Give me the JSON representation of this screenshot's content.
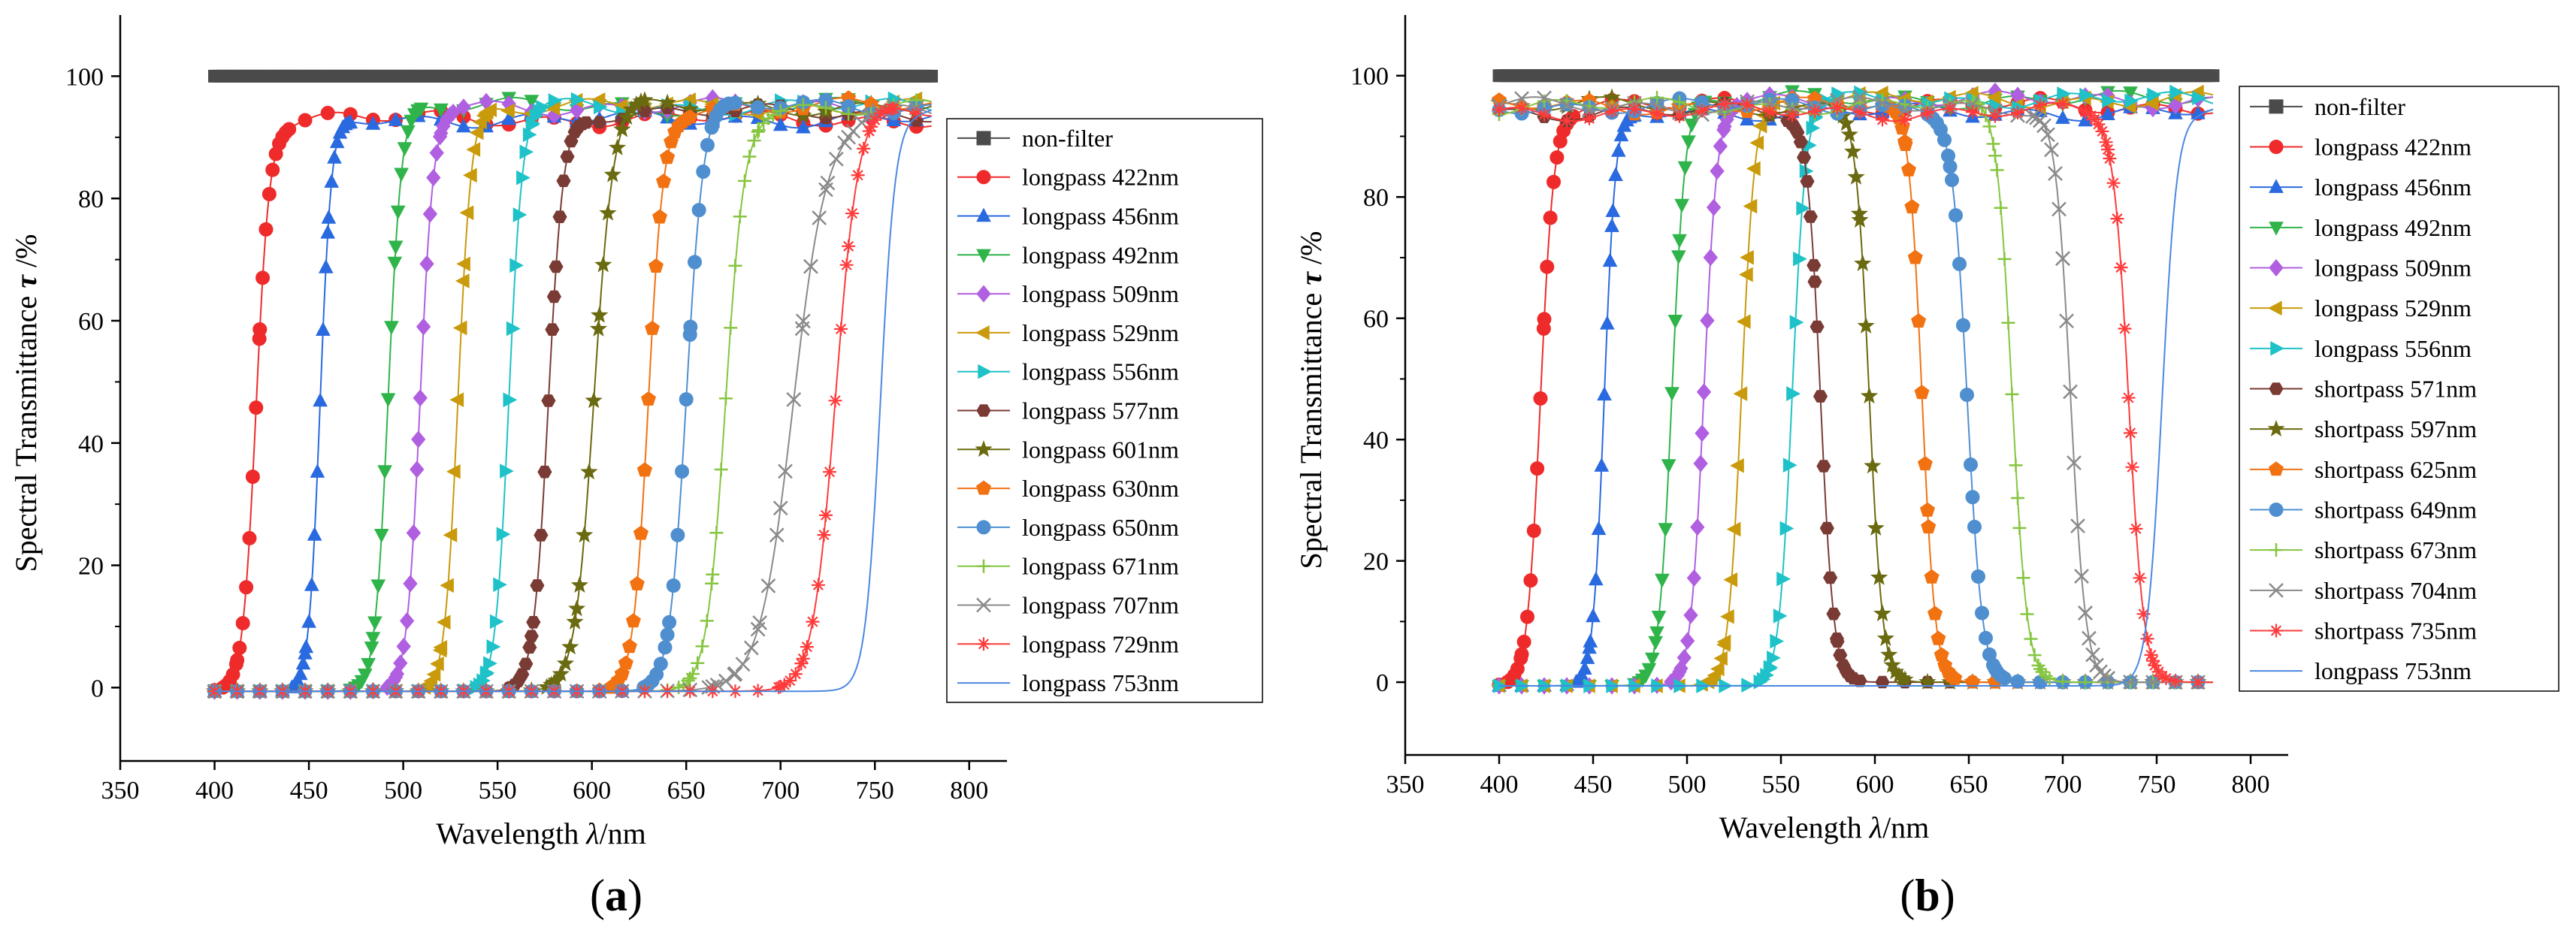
{
  "chart_data": [
    {
      "type": "line",
      "panel_label": "(a)",
      "xlabel": "Wavelength",
      "xlabel_symbol": "λ",
      "xlabel_unit": "/nm",
      "ylabel": "Spectral Transmittance",
      "ylabel_symbol": "τ",
      "ylabel_unit": " /%",
      "xlim": [
        350,
        820
      ],
      "ylim": [
        -12,
        110
      ],
      "xticks": [
        350,
        400,
        450,
        500,
        550,
        600,
        650,
        700,
        750,
        800
      ],
      "yticks": [
        0,
        20,
        40,
        60,
        80,
        100
      ],
      "legend_position": "right",
      "series": [
        {
          "name": "non-filter",
          "kind": "flat",
          "value": 100,
          "color": "#4a4a4a",
          "marker": "square"
        },
        {
          "name": "longpass 422nm",
          "kind": "longpass",
          "edge": 422,
          "width": 3.5,
          "plateau": 93,
          "color": "#ee2a2a",
          "marker": "circle"
        },
        {
          "name": "longpass 456nm",
          "kind": "longpass",
          "edge": 456,
          "width": 3.0,
          "plateau": 93,
          "color": "#2a6ae0",
          "marker": "triangle-up"
        },
        {
          "name": "longpass 492nm",
          "kind": "longpass",
          "edge": 492,
          "width": 3.5,
          "plateau": 95,
          "color": "#2fb44a",
          "marker": "triangle-down"
        },
        {
          "name": "longpass 509nm",
          "kind": "longpass",
          "edge": 509,
          "width": 3.5,
          "plateau": 95,
          "color": "#b05fe0",
          "marker": "diamond"
        },
        {
          "name": "longpass 529nm",
          "kind": "longpass",
          "edge": 529,
          "width": 3.5,
          "plateau": 95,
          "color": "#c99a0b",
          "marker": "triangle-left"
        },
        {
          "name": "longpass 556nm",
          "kind": "longpass",
          "edge": 556,
          "width": 3.5,
          "plateau": 95,
          "color": "#1ec2c8",
          "marker": "triangle-right"
        },
        {
          "name": "longpass 577nm",
          "kind": "longpass",
          "edge": 577,
          "width": 4.0,
          "plateau": 94,
          "color": "#7a3b34",
          "marker": "hexagon"
        },
        {
          "name": "longpass 601nm",
          "kind": "longpass",
          "edge": 601,
          "width": 5.0,
          "plateau": 95,
          "color": "#6a6a10",
          "marker": "star"
        },
        {
          "name": "longpass 630nm",
          "kind": "longpass",
          "edge": 630,
          "width": 4.0,
          "plateau": 95,
          "color": "#f27111",
          "marker": "pentagon"
        },
        {
          "name": "longpass 650nm",
          "kind": "longpass",
          "edge": 650,
          "width": 4.5,
          "plateau": 95,
          "color": "#4f8fd0",
          "marker": "circle"
        },
        {
          "name": "longpass 671nm",
          "kind": "longpass",
          "edge": 671,
          "width": 5.0,
          "plateau": 95,
          "color": "#86c540",
          "marker": "plus"
        },
        {
          "name": "longpass 707nm",
          "kind": "longpass",
          "edge": 707,
          "width": 9.0,
          "plateau": 94,
          "color": "#8a8a8a",
          "marker": "cross"
        },
        {
          "name": "longpass 729nm",
          "kind": "longpass",
          "edge": 729,
          "width": 6.0,
          "plateau": 95,
          "color": "#ff3b3b",
          "marker": "asterisk"
        },
        {
          "name": "longpass 753nm",
          "kind": "longpass",
          "edge": 753,
          "width": 4.0,
          "plateau": 95,
          "color": "#4a88e0",
          "marker": "none"
        }
      ]
    },
    {
      "type": "line",
      "panel_label": "(b)",
      "xlabel": "Wavelength",
      "xlabel_symbol": "λ",
      "xlabel_unit": "/nm",
      "ylabel": "Spectral Transmittance",
      "ylabel_symbol": "τ",
      "ylabel_unit": " /%",
      "xlim": [
        350,
        820
      ],
      "ylim": [
        -12,
        110
      ],
      "xticks": [
        350,
        400,
        450,
        500,
        550,
        600,
        650,
        700,
        750,
        800
      ],
      "yticks": [
        0,
        20,
        40,
        60,
        80,
        100
      ],
      "legend_position": "right",
      "series": [
        {
          "name": "non-filter",
          "kind": "flat",
          "value": 100,
          "color": "#4a4a4a",
          "marker": "square"
        },
        {
          "name": "longpass 422nm",
          "kind": "longpass",
          "edge": 422,
          "width": 3.5,
          "plateau": 95,
          "color": "#ee2a2a",
          "marker": "circle"
        },
        {
          "name": "longpass 456nm",
          "kind": "longpass",
          "edge": 456,
          "width": 3.0,
          "plateau": 94,
          "color": "#2a6ae0",
          "marker": "triangle-up"
        },
        {
          "name": "longpass 492nm",
          "kind": "longpass",
          "edge": 492,
          "width": 3.5,
          "plateau": 96,
          "color": "#2fb44a",
          "marker": "triangle-down"
        },
        {
          "name": "longpass 509nm",
          "kind": "longpass",
          "edge": 509,
          "width": 3.5,
          "plateau": 96,
          "color": "#b05fe0",
          "marker": "diamond"
        },
        {
          "name": "longpass 529nm",
          "kind": "longpass",
          "edge": 529,
          "width": 3.5,
          "plateau": 96,
          "color": "#c99a0b",
          "marker": "triangle-left"
        },
        {
          "name": "longpass 556nm",
          "kind": "longpass",
          "edge": 556,
          "width": 3.5,
          "plateau": 96,
          "color": "#1ec2c8",
          "marker": "triangle-right"
        },
        {
          "name": "shortpass 571nm",
          "kind": "shortpass",
          "edge": 571,
          "width": 3.5,
          "plateau": 94,
          "color": "#7a3b34",
          "marker": "hexagon"
        },
        {
          "name": "shortpass 597nm",
          "kind": "shortpass",
          "edge": 597,
          "width": 3.5,
          "plateau": 95,
          "color": "#6a6a10",
          "marker": "star"
        },
        {
          "name": "shortpass 625nm",
          "kind": "shortpass",
          "edge": 625,
          "width": 3.5,
          "plateau": 95,
          "color": "#f27111",
          "marker": "pentagon"
        },
        {
          "name": "shortpass 649nm",
          "kind": "shortpass",
          "edge": 649,
          "width": 4.0,
          "plateau": 95,
          "color": "#4f8fd0",
          "marker": "circle"
        },
        {
          "name": "shortpass 673nm",
          "kind": "shortpass",
          "edge": 673,
          "width": 4.0,
          "plateau": 95,
          "color": "#86c540",
          "marker": "plus"
        },
        {
          "name": "shortpass 704nm",
          "kind": "shortpass",
          "edge": 704,
          "width": 4.0,
          "plateau": 95,
          "color": "#8a8a8a",
          "marker": "cross"
        },
        {
          "name": "shortpass 735nm",
          "kind": "shortpass",
          "edge": 735,
          "width": 4.0,
          "plateau": 94,
          "color": "#ff3b3b",
          "marker": "asterisk"
        },
        {
          "name": "longpass 753nm",
          "kind": "longpass",
          "edge": 753,
          "width": 4.0,
          "plateau": 95,
          "color": "#4a88e0",
          "marker": "none"
        }
      ]
    }
  ]
}
